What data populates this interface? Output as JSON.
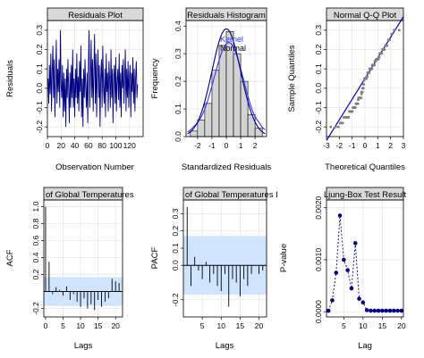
{
  "chart_data": [
    {
      "id": "residuals-plot",
      "type": "line",
      "title": "Residuals Plot",
      "xlabel": "Observation Number",
      "ylabel": "Residuals",
      "xlim": [
        0,
        140
      ],
      "ylim": [
        -0.25,
        0.35
      ],
      "xticks": [
        "0",
        "20",
        "40",
        "60",
        "80",
        "100",
        "120"
      ],
      "yticks": [
        "-0.2",
        "-0.1",
        "0.0",
        "0.1",
        "0.2",
        "0.3"
      ],
      "grid": true,
      "series": [
        {
          "color": "#000080",
          "y": [
            0.05,
            -0.08,
            0.12,
            -0.03,
            0.18,
            -0.12,
            0.08,
            0.22,
            -0.05,
            0.15,
            -0.15,
            0.05,
            0.25,
            -0.08,
            0.1,
            -0.02,
            0.15,
            -0.1,
            0.3,
            0.02,
            -0.05,
            0.12,
            -0.15,
            0.08,
            -0.12,
            0.05,
            -0.2,
            0.1,
            -0.05,
            0.15,
            0.0,
            -0.18,
            0.08,
            -0.1,
            0.12,
            -0.05,
            0.2,
            -0.1,
            0.05,
            -0.15,
            0.1,
            -0.05,
            0.18,
            -0.08,
            0.06,
            -0.12,
            0.14,
            -0.02,
            0.22,
            -0.15,
            0.05,
            -0.2,
            0.1,
            -0.05,
            0.15,
            0.0,
            -0.1,
            0.08,
            -0.18,
            0.12,
            0.3,
            -0.1,
            0.05,
            0.25,
            -0.05,
            0.15,
            -0.12,
            0.1,
            0.28,
            -0.08,
            0.18,
            -0.15,
            0.08,
            0.2,
            -0.05,
            0.12,
            -0.2,
            0.05,
            0.15,
            -0.1,
            0.22,
            0.0,
            -0.08,
            0.1,
            -0.15,
            0.18,
            -0.02,
            0.08,
            -0.12,
            0.14,
            0.05,
            -0.1,
            0.2,
            -0.05,
            0.1,
            -0.18,
            0.06,
            0.12,
            -0.08,
            0.16,
            -0.12,
            0.04,
            0.1,
            -0.06,
            0.18,
            -0.1,
            0.08,
            -0.15,
            0.12,
            0.0,
            0.15,
            -0.08,
            0.05,
            0.2,
            -0.12,
            0.1,
            -0.05,
            0.14,
            -0.1,
            0.06,
            0.12,
            -0.15,
            0.08,
            -0.02,
            0.16,
            -0.08,
            0.1,
            -0.12,
            0.05,
            0.14,
            -0.05,
            0.02
          ]
        }
      ]
    },
    {
      "id": "residuals-histogram",
      "type": "bar",
      "title": "Residuals Histogram",
      "xlabel": "Standardized Residuals",
      "ylabel": "Frequency",
      "xlim": [
        -2.8,
        2.8
      ],
      "ylim": [
        0,
        0.42
      ],
      "xticks": [
        "-2",
        "-1",
        "0",
        "1",
        "2"
      ],
      "yticks": [
        "0.0",
        "0.1",
        "0.2",
        "0.3",
        "0.4"
      ],
      "grid": true,
      "bins": [
        {
          "from": -2.5,
          "to": -2.0,
          "value": 0.02
        },
        {
          "from": -2.0,
          "to": -1.5,
          "value": 0.06
        },
        {
          "from": -1.5,
          "to": -1.0,
          "value": 0.12
        },
        {
          "from": -1.0,
          "to": -0.5,
          "value": 0.24
        },
        {
          "from": -0.5,
          "to": 0.0,
          "value": 0.33
        },
        {
          "from": 0.0,
          "to": 0.5,
          "value": 0.38
        },
        {
          "from": 0.5,
          "to": 1.0,
          "value": 0.3
        },
        {
          "from": 1.0,
          "to": 1.5,
          "value": 0.2
        },
        {
          "from": 1.5,
          "to": 2.0,
          "value": 0.08
        },
        {
          "from": 2.0,
          "to": 2.5,
          "value": 0.03
        }
      ],
      "series": [
        {
          "name": "Kernel",
          "color": "#3333ff"
        },
        {
          "name": "Normal",
          "color": "#000080"
        }
      ],
      "legend_position": "top-right"
    },
    {
      "id": "normal-qq-plot",
      "type": "scatter",
      "title": "Normal Q-Q Plot",
      "xlabel": "Theoretical Quantiles",
      "ylabel": "Sample Quantiles",
      "xlim": [
        -3,
        3
      ],
      "ylim": [
        -0.25,
        0.35
      ],
      "xticks": [
        "-3",
        "-2",
        "-1",
        "0",
        "1",
        "2",
        "3"
      ],
      "yticks": [
        "-0.2",
        "-0.1",
        "0.0",
        "0.1",
        "0.2",
        "0.3"
      ],
      "grid": true,
      "line_color": "#0000cc",
      "point_color": "#808080"
    },
    {
      "id": "acf-plot",
      "type": "bar",
      "title": "of Global Temperatures",
      "xlabel": "Lags",
      "ylabel": "ACF",
      "xlim": [
        -0.5,
        22
      ],
      "ylim": [
        -0.3,
        1.08
      ],
      "xticks": [
        "0",
        "5",
        "10",
        "15",
        "20"
      ],
      "yticks": [
        "-0.2",
        "0.2",
        "0.4",
        "0.6",
        "0.8",
        "1.0"
      ],
      "grid": true,
      "ci": 0.17,
      "ci_color": "#cfe4ff",
      "lags": [
        0,
        1,
        2,
        3,
        4,
        5,
        6,
        7,
        8,
        9,
        10,
        11,
        12,
        13,
        14,
        15,
        16,
        17,
        18,
        19,
        20,
        21
      ],
      "values": [
        1.0,
        0.35,
        -0.03,
        0.05,
        0.02,
        -0.05,
        0.06,
        -0.1,
        -0.03,
        -0.12,
        -0.18,
        -0.08,
        -0.2,
        -0.15,
        -0.22,
        -0.1,
        -0.18,
        -0.12,
        -0.08,
        0.15,
        0.12,
        0.1
      ]
    },
    {
      "id": "pacf-plot",
      "type": "bar",
      "title": "of Global Temperatures I",
      "xlabel": "Lags",
      "ylabel": "PACF",
      "xlim": [
        0,
        22
      ],
      "ylim": [
        -0.3,
        0.38
      ],
      "xticks": [
        "5",
        "10",
        "15",
        "20"
      ],
      "yticks": [
        "-0.2",
        "0.0",
        "0.1",
        "0.2",
        "0.3"
      ],
      "grid": true,
      "ci": 0.17,
      "ci_color": "#cfe4ff",
      "lags": [
        1,
        2,
        3,
        4,
        5,
        6,
        7,
        8,
        9,
        10,
        11,
        12,
        13,
        14,
        15,
        16,
        17,
        18,
        19,
        20,
        21
      ],
      "values": [
        0.34,
        -0.12,
        0.05,
        -0.03,
        -0.08,
        0.02,
        -0.1,
        -0.05,
        -0.12,
        -0.15,
        -0.05,
        -0.24,
        -0.08,
        -0.1,
        -0.18,
        -0.08,
        -0.12,
        -0.05,
        0.0,
        -0.05,
        -0.03
      ]
    },
    {
      "id": "ljung-box-plot",
      "type": "scatter",
      "title": "Ljung-Box Test Result",
      "xlabel": "Lag",
      "ylabel": "P-value",
      "xlim": [
        0.5,
        20.5
      ],
      "ylim": [
        -0.0001,
        0.00215
      ],
      "xticks": [
        "5",
        "10",
        "15",
        "20"
      ],
      "yticks": [
        "0.0000",
        "0.0010",
        "0.0020"
      ],
      "grid": true,
      "color": "#000080",
      "x": [
        1,
        2,
        3,
        4,
        5,
        6,
        7,
        8,
        9,
        10,
        11,
        12,
        13,
        14,
        15,
        16,
        17,
        18,
        19,
        20
      ],
      "y": [
        2e-05,
        0.00022,
        0.00075,
        0.00185,
        0.001,
        0.0008,
        0.00045,
        0.00132,
        0.00025,
        0.00018,
        3e-05,
        2e-05,
        2e-05,
        2e-05,
        2e-05,
        2e-05,
        2e-05,
        2e-05,
        2e-05,
        2e-05
      ]
    }
  ]
}
